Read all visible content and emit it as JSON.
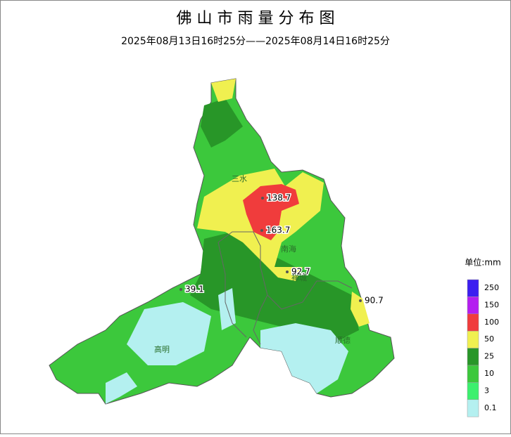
{
  "header": {
    "title": "佛 山 市 雨 量 分 布 图",
    "subtitle": "2025年08月13日16时25分——2025年08月14日16时25分"
  },
  "legend": {
    "title": "单位:mm",
    "items": [
      {
        "label": 250,
        "color": "#3c1ef0"
      },
      {
        "label": 150,
        "color": "#b41ef0"
      },
      {
        "label": 100,
        "color": "#f03c3c"
      },
      {
        "label": 50,
        "color": "#f0f050"
      },
      {
        "label": 25,
        "color": "#289628"
      },
      {
        "label": 10,
        "color": "#3cc83c"
      },
      {
        "label": 3,
        "color": "#3cf06e"
      },
      {
        "label": 0.1,
        "color": "#b4f0f0"
      }
    ]
  },
  "stations": [
    {
      "label": 138.7
    },
    {
      "label": 163.7
    },
    {
      "label": 92.7
    },
    {
      "label": 90.7
    },
    {
      "label": 39.1
    }
  ],
  "districts": [
    {
      "label": "三水"
    },
    {
      "label": "南海"
    },
    {
      "label": "禅城"
    },
    {
      "label": "高明"
    },
    {
      "label": "顺德"
    }
  ]
}
